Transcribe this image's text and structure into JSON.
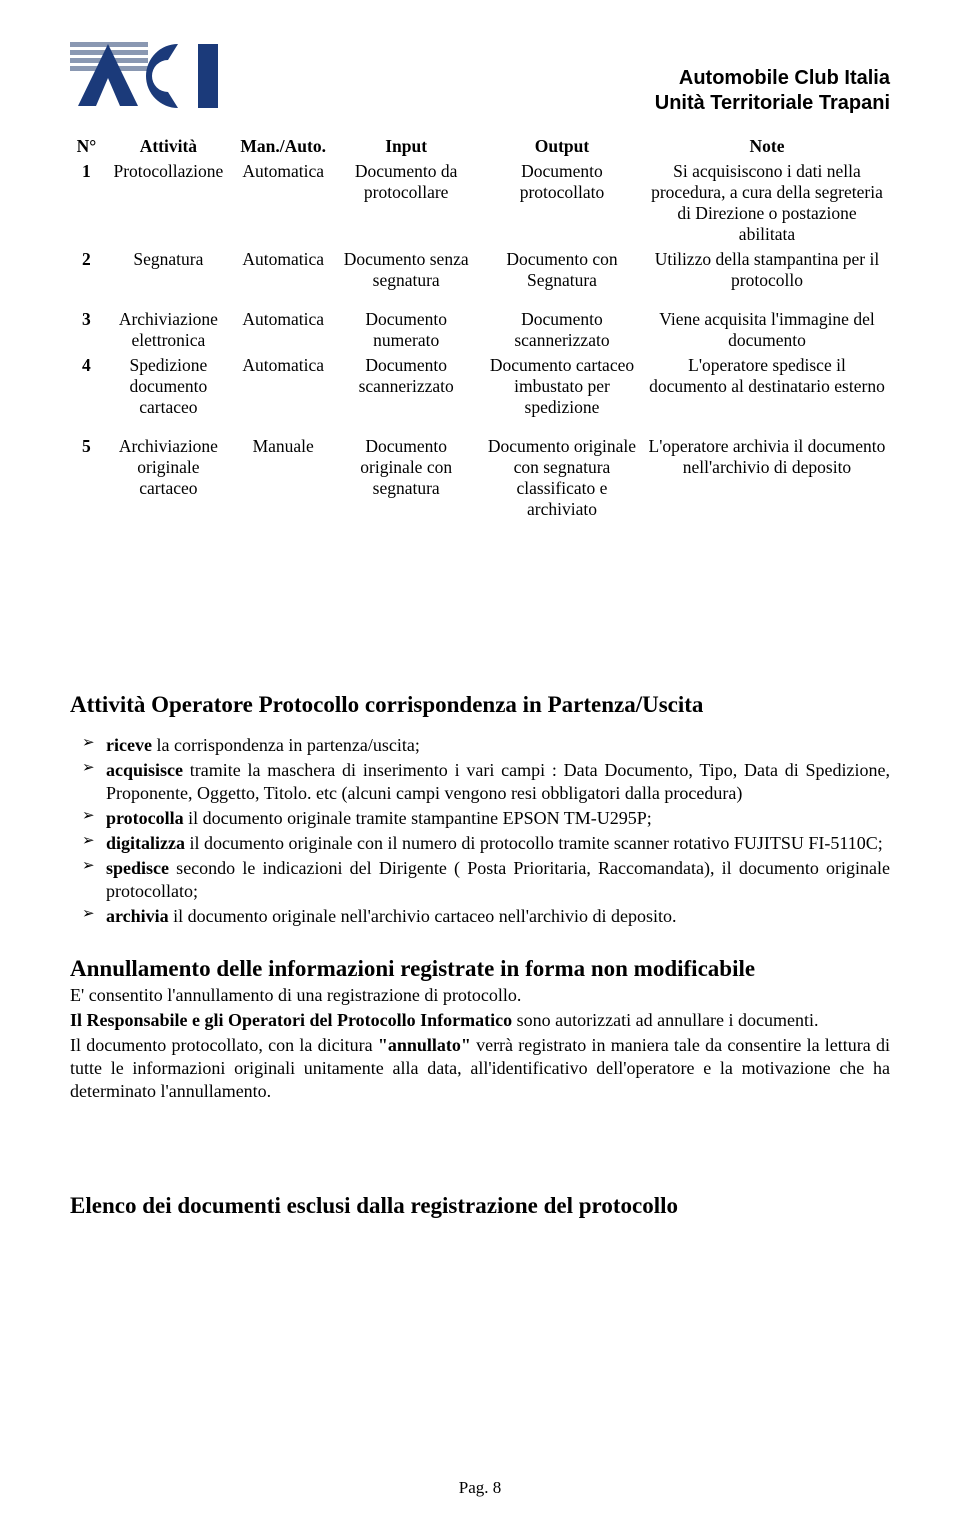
{
  "header": {
    "org_line1": "Automobile Club Italia",
    "org_line2": "Unità Territoriale Trapani"
  },
  "table": {
    "headers": {
      "n": "N°",
      "attivita": "Attività",
      "man_auto": "Man./Auto.",
      "input": "Input",
      "output": "Output",
      "note": "Note"
    },
    "rows": [
      {
        "n": "1",
        "attivita": "Protocollazione",
        "man_auto": "Automatica",
        "input": "Documento da protocollare",
        "output": "Documento protocollato",
        "note": "Si acquisiscono i dati nella procedura, a cura della segreteria di Direzione o postazione abilitata"
      },
      {
        "n": "2",
        "attivita": "Segnatura",
        "man_auto": "Automatica",
        "input": "Documento senza segnatura",
        "output": "Documento con Segnatura",
        "note": "Utilizzo della stampantina per il protocollo"
      },
      {
        "n": "3",
        "attivita": "Archiviazione elettronica",
        "man_auto": "Automatica",
        "input": "Documento numerato",
        "output": "Documento scannerizzato",
        "note": "Viene acquisita l'immagine del documento"
      },
      {
        "n": "4",
        "attivita": "Spedizione documento cartaceo",
        "man_auto": "Automatica",
        "input": "Documento scannerizzato",
        "output": "Documento cartaceo imbustato per spedizione",
        "note": "L'operatore spedisce il documento al destinatario esterno"
      },
      {
        "n": "5",
        "attivita": "Archiviazione originale cartaceo",
        "man_auto": "Manuale",
        "input": "Documento originale con segnatura",
        "output": "Documento originale con segnatura classificato e archiviato",
        "note": "L'operatore archivia il documento nell'archivio di deposito"
      }
    ]
  },
  "section1": {
    "title": "Attività Operatore Protocollo corrispondenza in Partenza/Uscita",
    "bullets": [
      {
        "prefix": "riceve",
        "rest": " la corrispondenza in partenza/uscita;"
      },
      {
        "prefix": "acquisisce",
        "rest": " tramite la maschera di inserimento i vari campi : Data Documento, Tipo, Data di Spedizione, Proponente, Oggetto, Titolo. etc (alcuni campi vengono resi obbligatori dalla procedura)"
      },
      {
        "prefix": "protocolla",
        "rest": " il documento originale tramite stampantine EPSON TM-U295P;"
      },
      {
        "prefix": "digitalizza",
        "rest": " il documento originale con il numero di protocollo tramite scanner rotativo FUJITSU FI-5110C;"
      },
      {
        "prefix": "spedisce",
        "rest": " secondo le indicazioni del Dirigente ( Posta Prioritaria, Raccomandata), il documento originale protocollato;"
      },
      {
        "prefix": "archivia",
        "rest": " il documento originale nell'archivio cartaceo nell'archivio di deposito."
      }
    ]
  },
  "section2": {
    "title": "Annullamento delle informazioni registrate in forma non modificabile",
    "p1": "E' consentito l'annullamento di una registrazione di protocollo.",
    "p2_bold": "Il Responsabile e gli Operatori del Protocollo Informatico",
    "p2_rest": " sono autorizzati ad annullare i documenti.",
    "p3_a": "Il documento protocollato, con la dicitura ",
    "p3_bold": "\"annullato\"",
    "p3_b": " verrà registrato in maniera tale da consentire la lettura di tutte le informazioni originali unitamente alla data, all'identificativo dell'operatore e la motivazione che  ha determinato l'annullamento."
  },
  "section3": {
    "title": "Elenco dei documenti esclusi dalla registrazione del protocollo"
  },
  "footer": {
    "text": "Pag. 8"
  },
  "logo": {
    "colors": {
      "navy": "#1b3a7a",
      "gray": "#8a98b2",
      "white": "#ffffff"
    }
  }
}
